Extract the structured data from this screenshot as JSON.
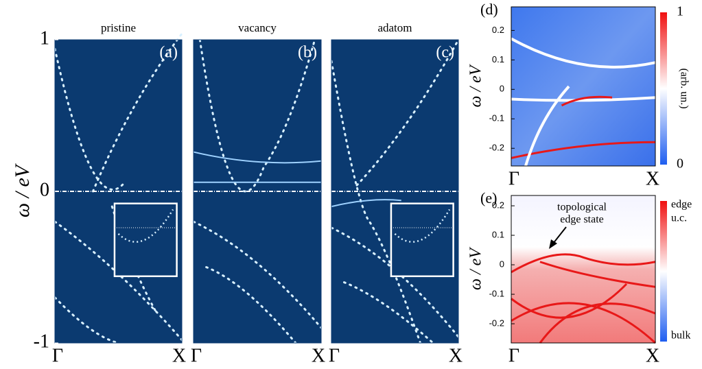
{
  "chart_data": [
    {
      "type": "heatmap",
      "title": "pristine",
      "panel": "(a)",
      "ylabel": "ω / eV",
      "ylim": [
        -1,
        1
      ],
      "yticks": [
        -1,
        0,
        1
      ],
      "categories": [
        "Γ",
        "X"
      ]
    },
    {
      "type": "heatmap",
      "title": "vacancy",
      "panel": "(b)",
      "ylim": [
        -1,
        1
      ],
      "categories": [
        "Γ",
        "X"
      ]
    },
    {
      "type": "heatmap",
      "title": "adatom",
      "panel": "(c)",
      "ylim": [
        -1,
        1
      ],
      "categories": [
        "Γ",
        "X"
      ]
    },
    {
      "type": "heatmap",
      "panel": "(d)",
      "ylabel": "ω / eV",
      "ylim": [
        -0.26,
        0.28
      ],
      "yticks": [
        -0.2,
        -0.1,
        0,
        0.1,
        0.2
      ],
      "categories": [
        "Γ",
        "X"
      ],
      "colorbar_lim": [
        0,
        1
      ],
      "colorbar_ticks": [
        0,
        1
      ],
      "colorbar_label": "(arb. un.)"
    },
    {
      "type": "heatmap",
      "panel": "(e)",
      "ylabel": "ω / eV",
      "ylim": [
        -0.265,
        0.235
      ],
      "yticks": [
        -0.2,
        -0.1,
        0,
        0.1,
        0.2
      ],
      "categories": [
        "Γ",
        "X"
      ],
      "colorbar_top": [
        "edge",
        "u.c."
      ],
      "colorbar_bottom": "bulk",
      "annotation": [
        "topological",
        "edge state"
      ]
    }
  ]
}
